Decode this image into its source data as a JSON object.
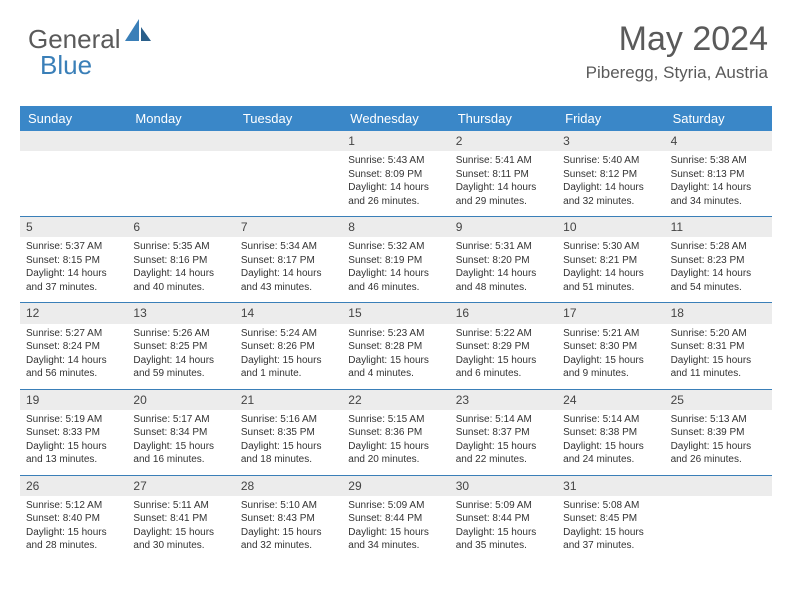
{
  "logo": {
    "text1": "General",
    "text2": "Blue"
  },
  "header": {
    "month": "May 2024",
    "location": "Piberegg, Styria, Austria"
  },
  "colors": {
    "header_bg": "#3a87c8",
    "accent": "#3a7fb8",
    "daynum_bg": "#ececec",
    "text": "#333333"
  },
  "weekdays": [
    "Sunday",
    "Monday",
    "Tuesday",
    "Wednesday",
    "Thursday",
    "Friday",
    "Saturday"
  ],
  "weeks": [
    [
      {
        "n": "",
        "sr": "",
        "ss": "",
        "dl": ""
      },
      {
        "n": "",
        "sr": "",
        "ss": "",
        "dl": ""
      },
      {
        "n": "",
        "sr": "",
        "ss": "",
        "dl": ""
      },
      {
        "n": "1",
        "sr": "Sunrise: 5:43 AM",
        "ss": "Sunset: 8:09 PM",
        "dl": "Daylight: 14 hours and 26 minutes."
      },
      {
        "n": "2",
        "sr": "Sunrise: 5:41 AM",
        "ss": "Sunset: 8:11 PM",
        "dl": "Daylight: 14 hours and 29 minutes."
      },
      {
        "n": "3",
        "sr": "Sunrise: 5:40 AM",
        "ss": "Sunset: 8:12 PM",
        "dl": "Daylight: 14 hours and 32 minutes."
      },
      {
        "n": "4",
        "sr": "Sunrise: 5:38 AM",
        "ss": "Sunset: 8:13 PM",
        "dl": "Daylight: 14 hours and 34 minutes."
      }
    ],
    [
      {
        "n": "5",
        "sr": "Sunrise: 5:37 AM",
        "ss": "Sunset: 8:15 PM",
        "dl": "Daylight: 14 hours and 37 minutes."
      },
      {
        "n": "6",
        "sr": "Sunrise: 5:35 AM",
        "ss": "Sunset: 8:16 PM",
        "dl": "Daylight: 14 hours and 40 minutes."
      },
      {
        "n": "7",
        "sr": "Sunrise: 5:34 AM",
        "ss": "Sunset: 8:17 PM",
        "dl": "Daylight: 14 hours and 43 minutes."
      },
      {
        "n": "8",
        "sr": "Sunrise: 5:32 AM",
        "ss": "Sunset: 8:19 PM",
        "dl": "Daylight: 14 hours and 46 minutes."
      },
      {
        "n": "9",
        "sr": "Sunrise: 5:31 AM",
        "ss": "Sunset: 8:20 PM",
        "dl": "Daylight: 14 hours and 48 minutes."
      },
      {
        "n": "10",
        "sr": "Sunrise: 5:30 AM",
        "ss": "Sunset: 8:21 PM",
        "dl": "Daylight: 14 hours and 51 minutes."
      },
      {
        "n": "11",
        "sr": "Sunrise: 5:28 AM",
        "ss": "Sunset: 8:23 PM",
        "dl": "Daylight: 14 hours and 54 minutes."
      }
    ],
    [
      {
        "n": "12",
        "sr": "Sunrise: 5:27 AM",
        "ss": "Sunset: 8:24 PM",
        "dl": "Daylight: 14 hours and 56 minutes."
      },
      {
        "n": "13",
        "sr": "Sunrise: 5:26 AM",
        "ss": "Sunset: 8:25 PM",
        "dl": "Daylight: 14 hours and 59 minutes."
      },
      {
        "n": "14",
        "sr": "Sunrise: 5:24 AM",
        "ss": "Sunset: 8:26 PM",
        "dl": "Daylight: 15 hours and 1 minute."
      },
      {
        "n": "15",
        "sr": "Sunrise: 5:23 AM",
        "ss": "Sunset: 8:28 PM",
        "dl": "Daylight: 15 hours and 4 minutes."
      },
      {
        "n": "16",
        "sr": "Sunrise: 5:22 AM",
        "ss": "Sunset: 8:29 PM",
        "dl": "Daylight: 15 hours and 6 minutes."
      },
      {
        "n": "17",
        "sr": "Sunrise: 5:21 AM",
        "ss": "Sunset: 8:30 PM",
        "dl": "Daylight: 15 hours and 9 minutes."
      },
      {
        "n": "18",
        "sr": "Sunrise: 5:20 AM",
        "ss": "Sunset: 8:31 PM",
        "dl": "Daylight: 15 hours and 11 minutes."
      }
    ],
    [
      {
        "n": "19",
        "sr": "Sunrise: 5:19 AM",
        "ss": "Sunset: 8:33 PM",
        "dl": "Daylight: 15 hours and 13 minutes."
      },
      {
        "n": "20",
        "sr": "Sunrise: 5:17 AM",
        "ss": "Sunset: 8:34 PM",
        "dl": "Daylight: 15 hours and 16 minutes."
      },
      {
        "n": "21",
        "sr": "Sunrise: 5:16 AM",
        "ss": "Sunset: 8:35 PM",
        "dl": "Daylight: 15 hours and 18 minutes."
      },
      {
        "n": "22",
        "sr": "Sunrise: 5:15 AM",
        "ss": "Sunset: 8:36 PM",
        "dl": "Daylight: 15 hours and 20 minutes."
      },
      {
        "n": "23",
        "sr": "Sunrise: 5:14 AM",
        "ss": "Sunset: 8:37 PM",
        "dl": "Daylight: 15 hours and 22 minutes."
      },
      {
        "n": "24",
        "sr": "Sunrise: 5:14 AM",
        "ss": "Sunset: 8:38 PM",
        "dl": "Daylight: 15 hours and 24 minutes."
      },
      {
        "n": "25",
        "sr": "Sunrise: 5:13 AM",
        "ss": "Sunset: 8:39 PM",
        "dl": "Daylight: 15 hours and 26 minutes."
      }
    ],
    [
      {
        "n": "26",
        "sr": "Sunrise: 5:12 AM",
        "ss": "Sunset: 8:40 PM",
        "dl": "Daylight: 15 hours and 28 minutes."
      },
      {
        "n": "27",
        "sr": "Sunrise: 5:11 AM",
        "ss": "Sunset: 8:41 PM",
        "dl": "Daylight: 15 hours and 30 minutes."
      },
      {
        "n": "28",
        "sr": "Sunrise: 5:10 AM",
        "ss": "Sunset: 8:43 PM",
        "dl": "Daylight: 15 hours and 32 minutes."
      },
      {
        "n": "29",
        "sr": "Sunrise: 5:09 AM",
        "ss": "Sunset: 8:44 PM",
        "dl": "Daylight: 15 hours and 34 minutes."
      },
      {
        "n": "30",
        "sr": "Sunrise: 5:09 AM",
        "ss": "Sunset: 8:44 PM",
        "dl": "Daylight: 15 hours and 35 minutes."
      },
      {
        "n": "31",
        "sr": "Sunrise: 5:08 AM",
        "ss": "Sunset: 8:45 PM",
        "dl": "Daylight: 15 hours and 37 minutes."
      },
      {
        "n": "",
        "sr": "",
        "ss": "",
        "dl": ""
      }
    ]
  ]
}
